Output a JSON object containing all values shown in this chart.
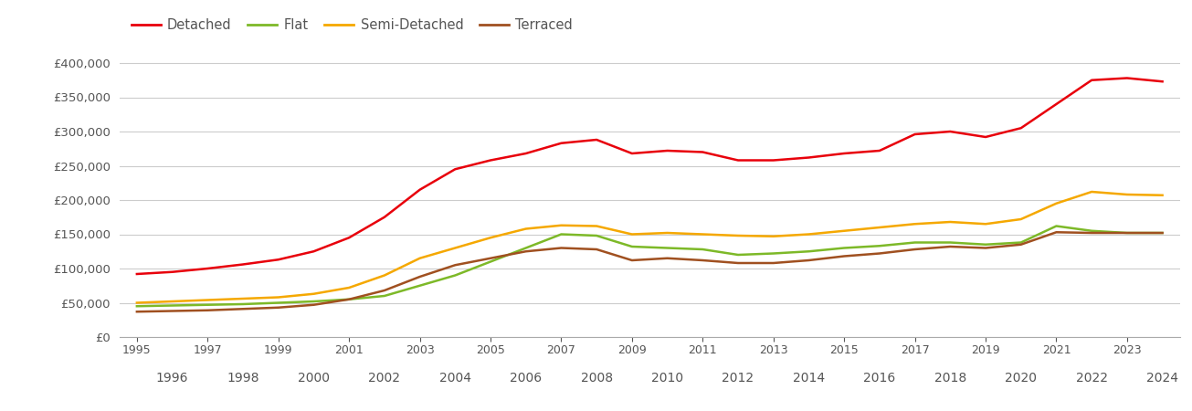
{
  "series": {
    "Detached": {
      "color": "#e8000b",
      "years": [
        1995,
        1996,
        1997,
        1998,
        1999,
        2000,
        2001,
        2002,
        2003,
        2004,
        2005,
        2006,
        2007,
        2008,
        2009,
        2010,
        2011,
        2012,
        2013,
        2014,
        2015,
        2016,
        2017,
        2018,
        2019,
        2020,
        2021,
        2022,
        2023,
        2024
      ],
      "values": [
        92000,
        95000,
        100000,
        106000,
        113000,
        125000,
        145000,
        175000,
        215000,
        245000,
        258000,
        268000,
        283000,
        288000,
        268000,
        272000,
        270000,
        258000,
        258000,
        262000,
        268000,
        272000,
        296000,
        300000,
        292000,
        305000,
        340000,
        375000,
        378000,
        373000
      ]
    },
    "Flat": {
      "color": "#7db928",
      "years": [
        1995,
        1996,
        1997,
        1998,
        1999,
        2000,
        2001,
        2002,
        2003,
        2004,
        2005,
        2006,
        2007,
        2008,
        2009,
        2010,
        2011,
        2012,
        2013,
        2014,
        2015,
        2016,
        2017,
        2018,
        2019,
        2020,
        2021,
        2022,
        2023,
        2024
      ],
      "values": [
        45000,
        46000,
        47000,
        48000,
        50000,
        52000,
        55000,
        60000,
        75000,
        90000,
        110000,
        130000,
        150000,
        148000,
        132000,
        130000,
        128000,
        120000,
        122000,
        125000,
        130000,
        133000,
        138000,
        138000,
        135000,
        138000,
        162000,
        155000,
        152000,
        152000
      ]
    },
    "Semi-Detached": {
      "color": "#f5a800",
      "years": [
        1995,
        1996,
        1997,
        1998,
        1999,
        2000,
        2001,
        2002,
        2003,
        2004,
        2005,
        2006,
        2007,
        2008,
        2009,
        2010,
        2011,
        2012,
        2013,
        2014,
        2015,
        2016,
        2017,
        2018,
        2019,
        2020,
        2021,
        2022,
        2023,
        2024
      ],
      "values": [
        50000,
        52000,
        54000,
        56000,
        58000,
        63000,
        72000,
        90000,
        115000,
        130000,
        145000,
        158000,
        163000,
        162000,
        150000,
        152000,
        150000,
        148000,
        147000,
        150000,
        155000,
        160000,
        165000,
        168000,
        165000,
        172000,
        195000,
        212000,
        208000,
        207000
      ]
    },
    "Terraced": {
      "color": "#a05020",
      "years": [
        1995,
        1996,
        1997,
        1998,
        1999,
        2000,
        2001,
        2002,
        2003,
        2004,
        2005,
        2006,
        2007,
        2008,
        2009,
        2010,
        2011,
        2012,
        2013,
        2014,
        2015,
        2016,
        2017,
        2018,
        2019,
        2020,
        2021,
        2022,
        2023,
        2024
      ],
      "values": [
        37000,
        38000,
        39000,
        41000,
        43000,
        47000,
        55000,
        68000,
        88000,
        105000,
        115000,
        125000,
        130000,
        128000,
        112000,
        115000,
        112000,
        108000,
        108000,
        112000,
        118000,
        122000,
        128000,
        132000,
        130000,
        135000,
        153000,
        152000,
        152000,
        152000
      ]
    }
  },
  "ylim": [
    0,
    420000
  ],
  "yticks": [
    0,
    50000,
    100000,
    150000,
    200000,
    250000,
    300000,
    350000,
    400000
  ],
  "background_color": "#ffffff",
  "grid_color": "#cccccc",
  "text_color": "#555555",
  "legend_order": [
    "Detached",
    "Flat",
    "Semi-Detached",
    "Terraced"
  ]
}
